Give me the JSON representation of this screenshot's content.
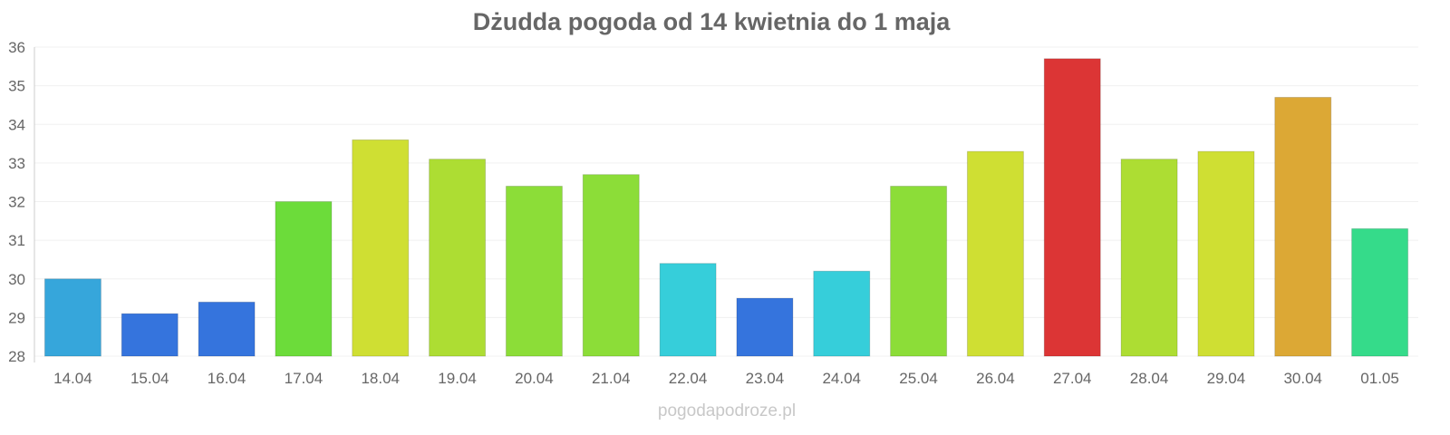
{
  "chart_data": {
    "type": "bar",
    "title": "Dżudda pogoda od 14 kwietnia do 1 maja",
    "xlabel": "",
    "ylabel": "",
    "ylim": [
      28,
      36
    ],
    "yticks": [
      "28",
      "29",
      "30",
      "31",
      "32",
      "33",
      "34",
      "35",
      "36"
    ],
    "grid": true,
    "categories": [
      "14.04",
      "15.04",
      "16.04",
      "17.04",
      "18.04",
      "19.04",
      "20.04",
      "21.04",
      "22.04",
      "23.04",
      "24.04",
      "25.04",
      "26.04",
      "27.04",
      "28.04",
      "29.04",
      "30.04",
      "01.05"
    ],
    "values": [
      30.0,
      29.1,
      29.4,
      32.0,
      33.6,
      33.1,
      32.4,
      32.7,
      30.4,
      29.5,
      30.2,
      32.4,
      33.3,
      35.7,
      33.1,
      33.3,
      34.7,
      31.3
    ],
    "colors": [
      "#36a6db",
      "#3574dd",
      "#3574dd",
      "#6cdc3a",
      "#cfdf33",
      "#addd33",
      "#8cdd38",
      "#8cdd38",
      "#36ceda",
      "#3574dd",
      "#36ceda",
      "#8cdd38",
      "#cfdf33",
      "#dc3535",
      "#addd33",
      "#cfdf33",
      "#dca835",
      "#35db8a"
    ]
  },
  "watermark": "pogodapodroze.pl"
}
